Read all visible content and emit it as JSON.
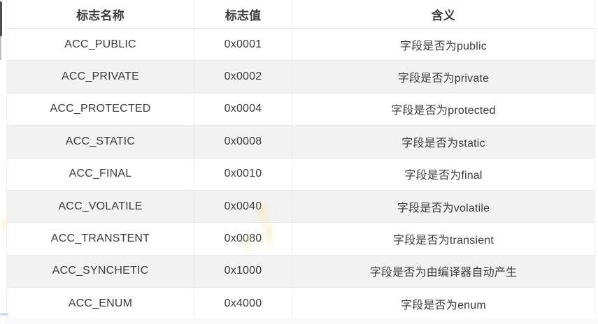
{
  "table": {
    "columns": [
      {
        "label": "标志名称"
      },
      {
        "label": "标志值"
      },
      {
        "label": "含义"
      }
    ],
    "rows": [
      {
        "name": "ACC_PUBLIC",
        "value": "0x0001",
        "meaning": "字段是否为public"
      },
      {
        "name": "ACC_PRIVATE",
        "value": "0x0002",
        "meaning": "字段是否为private"
      },
      {
        "name": "ACC_PROTECTED",
        "value": "0x0004",
        "meaning": "字段是否为protected"
      },
      {
        "name": "ACC_STATIC",
        "value": "0x0008",
        "meaning": "字段是否为static"
      },
      {
        "name": "ACC_FINAL",
        "value": "0x0010",
        "meaning": "字段是否为final"
      },
      {
        "name": "ACC_VOLATILE",
        "value": "0x0040",
        "meaning": "字段是否为volatile"
      },
      {
        "name": "ACC_TRANSTENT",
        "value": "0x0080",
        "meaning": "字段是否为transient"
      },
      {
        "name": "ACC_SYNCHETIC",
        "value": "0x1000",
        "meaning": "字段是否为由编译器自动产生"
      },
      {
        "name": "ACC_ENUM",
        "value": "0x4000",
        "meaning": "字段是否为enum"
      }
    ]
  },
  "colors": {
    "stripe_bg": "#f2f2f2",
    "row_bg": "#ffffff",
    "header_text": "#3c3c3c",
    "cell_text": "#3a3a3a",
    "header_border": "#dcdcdc",
    "row_border": "#eaeaea",
    "column_divider": "#ededed"
  }
}
